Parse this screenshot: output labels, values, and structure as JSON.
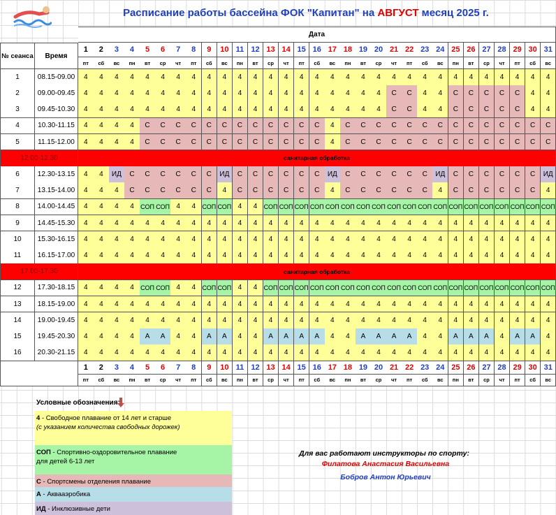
{
  "header": {
    "title_parts": [
      "Расписание работы бассейна ФОК \"Капитан\" на ",
      "АВГУСТ",
      " месяц 2025 г."
    ],
    "date_label": "Дата",
    "session_label": "№ сеанса",
    "time_label": "Время"
  },
  "day_colors": [
    "#000000",
    "#000000",
    "#1f3fbf",
    "#1f3fbf",
    "#e00000",
    "#e00000",
    "#1f3fbf",
    "#1f3fbf",
    "#e00000",
    "#e00000",
    "#1f3fbf",
    "#1f3fbf",
    "#e00000",
    "#e00000",
    "#1f3fbf",
    "#1f3fbf",
    "#e00000",
    "#e00000",
    "#1f3fbf",
    "#1f3fbf",
    "#e00000",
    "#e00000",
    "#1f3fbf",
    "#1f3fbf",
    "#e00000",
    "#e00000",
    "#1f3fbf",
    "#1f3fbf",
    "#e00000",
    "#e00000",
    "#1f3fbf"
  ],
  "days": [
    1,
    2,
    3,
    4,
    5,
    6,
    7,
    8,
    9,
    10,
    11,
    12,
    13,
    14,
    15,
    16,
    17,
    18,
    19,
    20,
    21,
    22,
    23,
    24,
    25,
    26,
    27,
    28,
    29,
    30,
    31
  ],
  "weekdays": [
    "пт",
    "сб",
    "вс",
    "пн",
    "вт",
    "ср",
    "чт",
    "пт",
    "сб",
    "вс",
    "пн",
    "вт",
    "ср",
    "чт",
    "пт",
    "сб",
    "вс",
    "пн",
    "вт",
    "ср",
    "чт",
    "пт",
    "сб",
    "вс",
    "пн",
    "вт",
    "ср",
    "чт",
    "пт",
    "сб",
    "вс"
  ],
  "cell_colors": {
    "4": "#ffff99",
    "С": "#e6b8b7",
    "СОП": "#a6f5a6",
    "А": "#b7dee8",
    "ИД": "#ccc0da"
  },
  "rows": [
    {
      "session": 1,
      "time": "08.15-09.00",
      "cells": [
        "4",
        "4",
        "4",
        "4",
        "4",
        "4",
        "4",
        "4",
        "4",
        "4",
        "4",
        "4",
        "4",
        "4",
        "4",
        "4",
        "4",
        "4",
        "4",
        "4",
        "4",
        "4",
        "4",
        "4",
        "4",
        "4",
        "4",
        "4",
        "4",
        "4",
        "4"
      ]
    },
    {
      "session": 2,
      "time": "09.00-09.45",
      "cells": [
        "4",
        "4",
        "4",
        "4",
        "4",
        "4",
        "4",
        "4",
        "4",
        "4",
        "4",
        "4",
        "4",
        "4",
        "4",
        "4",
        "4",
        "4",
        "4",
        "4",
        "С",
        "С",
        "4",
        "4",
        "С",
        "С",
        "С",
        "С",
        "С",
        "4",
        "4"
      ]
    },
    {
      "session": 3,
      "time": "09.45-10.30",
      "cells": [
        "4",
        "4",
        "4",
        "4",
        "4",
        "4",
        "4",
        "4",
        "4",
        "4",
        "4",
        "4",
        "4",
        "4",
        "4",
        "4",
        "4",
        "4",
        "4",
        "4",
        "С",
        "С",
        "4",
        "4",
        "С",
        "С",
        "С",
        "С",
        "С",
        "4",
        "4"
      ]
    },
    {
      "session": 4,
      "time": "10.30-11.15",
      "cells": [
        "4",
        "4",
        "4",
        "4",
        "С",
        "С",
        "С",
        "С",
        "С",
        "С",
        "С",
        "С",
        "С",
        "С",
        "С",
        "С",
        "4",
        "С",
        "С",
        "С",
        "С",
        "С",
        "С",
        "С",
        "С",
        "С",
        "С",
        "С",
        "С",
        "С",
        "С"
      ]
    },
    {
      "session": 5,
      "time": "11.15-12.00",
      "cells": [
        "4",
        "4",
        "4",
        "4",
        "С",
        "С",
        "С",
        "С",
        "С",
        "С",
        "С",
        "С",
        "С",
        "С",
        "С",
        "С",
        "4",
        "С",
        "С",
        "С",
        "С",
        "С",
        "С",
        "С",
        "С",
        "С",
        "С",
        "С",
        "С",
        "С",
        "С"
      ]
    },
    {
      "time": "12.00-12.30",
      "note": "санитарная обработка"
    },
    {
      "session": 6,
      "time": "12.30-13.15",
      "cells": [
        "4",
        "4",
        "ИД",
        "С",
        "С",
        "С",
        "С",
        "С",
        "С",
        "ИД",
        "С",
        "С",
        "С",
        "С",
        "С",
        "С",
        "ИД",
        "С",
        "С",
        "С",
        "С",
        "С",
        "С",
        "ИД",
        "С",
        "С",
        "С",
        "С",
        "С",
        "С",
        "ИД"
      ]
    },
    {
      "session": 7,
      "time": "13.15-14.00",
      "cells": [
        "4",
        "4",
        "4",
        "С",
        "С",
        "С",
        "С",
        "С",
        "С",
        "4",
        "С",
        "С",
        "С",
        "С",
        "С",
        "С",
        "4",
        "С",
        "С",
        "С",
        "С",
        "С",
        "С",
        "4",
        "С",
        "С",
        "С",
        "С",
        "С",
        "С",
        "4"
      ]
    },
    {
      "session": 8,
      "time": "14.00-14.45",
      "cells": [
        "4",
        "4",
        "4",
        "4",
        "СОП",
        "СОП",
        "4",
        "4",
        "СОП",
        "СОП",
        "4",
        "4",
        "СОП",
        "СОП",
        "СОП",
        "СОП",
        "СОП",
        "СОП",
        "СОП",
        "СОП",
        "СОП",
        "СОП",
        "СОП",
        "СОП",
        "СОП",
        "СОП",
        "СОП",
        "СОП",
        "СОП",
        "СОП",
        "СОП"
      ]
    },
    {
      "session": 9,
      "time": "14.45-15.30",
      "cells": [
        "4",
        "4",
        "4",
        "4",
        "4",
        "4",
        "4",
        "4",
        "4",
        "4",
        "4",
        "4",
        "4",
        "4",
        "4",
        "4",
        "4",
        "4",
        "4",
        "4",
        "4",
        "4",
        "4",
        "4",
        "4",
        "4",
        "4",
        "4",
        "4",
        "4",
        "4"
      ]
    },
    {
      "session": 10,
      "time": "15.30-16.15",
      "cells": [
        "4",
        "4",
        "4",
        "4",
        "4",
        "4",
        "4",
        "4",
        "4",
        "4",
        "4",
        "4",
        "4",
        "4",
        "4",
        "4",
        "4",
        "4",
        "4",
        "4",
        "4",
        "4",
        "4",
        "4",
        "4",
        "4",
        "4",
        "4",
        "4",
        "4",
        "4"
      ]
    },
    {
      "session": 11,
      "time": "16.15-17.00",
      "cells": [
        "4",
        "4",
        "4",
        "4",
        "4",
        "4",
        "4",
        "4",
        "4",
        "4",
        "4",
        "4",
        "4",
        "4",
        "4",
        "4",
        "4",
        "4",
        "4",
        "4",
        "4",
        "4",
        "4",
        "4",
        "4",
        "4",
        "4",
        "4",
        "4",
        "4",
        "4"
      ]
    },
    {
      "time": "17.00-17.30",
      "note": "санитарная обработка"
    },
    {
      "session": 12,
      "time": "17.30-18.15",
      "cells": [
        "4",
        "4",
        "4",
        "4",
        "СОП",
        "СОП",
        "4",
        "4",
        "СОП",
        "СОП",
        "4",
        "4",
        "СОП",
        "СОП",
        "СОП",
        "СОП",
        "СОП",
        "СОП",
        "СОП",
        "СОП",
        "СОП",
        "СОП",
        "СОП",
        "СОП",
        "СОП",
        "СОП",
        "СОП",
        "СОП",
        "СОП",
        "СОП",
        "СОП"
      ]
    },
    {
      "session": 13,
      "time": "18.15-19.00",
      "cells": [
        "4",
        "4",
        "4",
        "4",
        "4",
        "4",
        "4",
        "4",
        "4",
        "4",
        "4",
        "4",
        "4",
        "4",
        "4",
        "4",
        "4",
        "4",
        "4",
        "4",
        "4",
        "4",
        "4",
        "4",
        "4",
        "4",
        "4",
        "4",
        "4",
        "4",
        "4"
      ]
    },
    {
      "session": 14,
      "time": "19.00-19.45",
      "cells": [
        "4",
        "4",
        "4",
        "4",
        "4",
        "4",
        "4",
        "4",
        "4",
        "4",
        "4",
        "4",
        "4",
        "4",
        "4",
        "4",
        "4",
        "4",
        "4",
        "4",
        "4",
        "4",
        "4",
        "4",
        "4",
        "4",
        "4",
        "4",
        "4",
        "4",
        "4"
      ]
    },
    {
      "session": 15,
      "time": "19.45-20.30",
      "cells": [
        "4",
        "4",
        "4",
        "4",
        "А",
        "А",
        "4",
        "4",
        "А",
        "А",
        "4",
        "4",
        "А",
        "А",
        "А",
        "А",
        "4",
        "4",
        "А",
        "А",
        "А",
        "А",
        "4",
        "4",
        "А",
        "А",
        "А",
        "4",
        "А",
        "А",
        "4"
      ]
    },
    {
      "session": 16,
      "time": "20.30-21.15",
      "cells": [
        "4",
        "4",
        "4",
        "4",
        "4",
        "4",
        "4",
        "4",
        "4",
        "4",
        "4",
        "4",
        "4",
        "4",
        "4",
        "4",
        "4",
        "4",
        "4",
        "4",
        "4",
        "4",
        "4",
        "4",
        "4",
        "4",
        "4",
        "4",
        "4",
        "4",
        "4"
      ]
    }
  ],
  "legend": {
    "title": "Условные обозначения:",
    "items": [
      {
        "code": "4",
        "text": " - Свободное плавание от 14 лет и старше",
        "note": "(с указанием количества свободных дорожек)"
      },
      {
        "code": "СОП",
        "text": " - Спортивно-оздоровительное плавание",
        "note": "для детей 6-13 лет"
      },
      {
        "code": "С",
        "text": " - Спортсмены отделения плавание"
      },
      {
        "code": "А",
        "text": " - Аквааэробика"
      },
      {
        "code": "ИД",
        "text": " - Инклюзивные дети"
      }
    ]
  },
  "instructors": {
    "title": "Для вас работают инструкторы по спорту:",
    "names": [
      {
        "name": "Филатова Анастасия Васильевна",
        "color": "#e00000"
      },
      {
        "name": "Бобров Антон Юрьевич",
        "color": "#1f3fbf"
      }
    ]
  }
}
